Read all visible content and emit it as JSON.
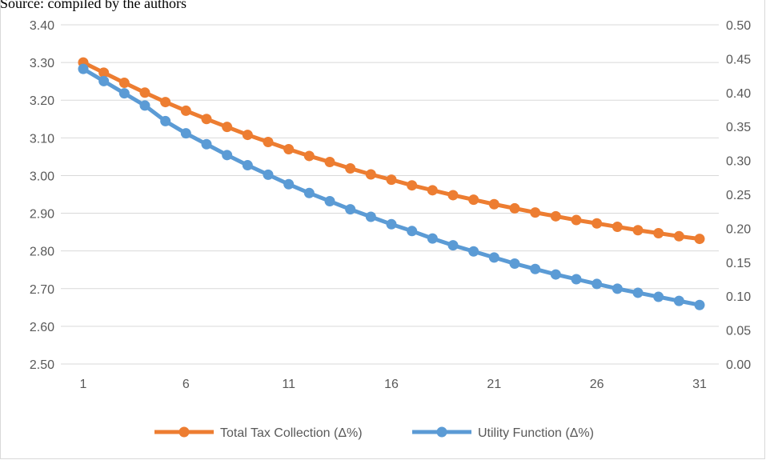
{
  "caption": "Source: compiled by the authors",
  "colors": {
    "tax": "#ED7D31",
    "utility": "#5B9BD5",
    "grid": "#d9d9d9",
    "text": "#595959"
  },
  "chart_data": {
    "type": "line",
    "x": [
      1,
      2,
      3,
      4,
      5,
      6,
      7,
      8,
      9,
      10,
      11,
      12,
      13,
      14,
      15,
      16,
      17,
      18,
      19,
      20,
      21,
      22,
      23,
      24,
      25,
      26,
      27,
      28,
      29,
      30,
      31
    ],
    "x_ticks": [
      "1",
      "6",
      "11",
      "16",
      "21",
      "26",
      "31"
    ],
    "y_left": {
      "ylim": [
        2.5,
        3.4
      ],
      "ticks": [
        "2.50",
        "2.60",
        "2.70",
        "2.80",
        "2.90",
        "3.00",
        "3.10",
        "3.20",
        "3.30",
        "3.40"
      ]
    },
    "y_right": {
      "ylim": [
        0,
        0.5
      ],
      "ticks": [
        "0.00",
        "0.05",
        "0.10",
        "0.15",
        "0.20",
        "0.25",
        "0.30",
        "0.35",
        "0.40",
        "0.45",
        "0.50"
      ]
    },
    "grid": true,
    "legend_position": "bottom",
    "series": [
      {
        "name": "Total Tax Collection (Δ%)",
        "axis": "left",
        "color": "#ED7D31",
        "values": [
          3.3,
          3.273,
          3.246,
          3.22,
          3.195,
          3.172,
          3.15,
          3.129,
          3.108,
          3.089,
          3.07,
          3.052,
          3.036,
          3.019,
          3.003,
          2.989,
          2.974,
          2.961,
          2.948,
          2.936,
          2.924,
          2.913,
          2.902,
          2.892,
          2.882,
          2.873,
          2.864,
          2.855,
          2.847,
          2.839,
          2.832
        ]
      },
      {
        "name": "Utility Function (Δ%)",
        "axis": "right",
        "color": "#5B9BD5",
        "values": [
          0.435,
          0.417,
          0.399,
          0.381,
          0.358,
          0.34,
          0.324,
          0.308,
          0.293,
          0.279,
          0.265,
          0.252,
          0.24,
          0.228,
          0.217,
          0.206,
          0.196,
          0.185,
          0.175,
          0.166,
          0.157,
          0.148,
          0.14,
          0.132,
          0.125,
          0.118,
          0.111,
          0.105,
          0.099,
          0.093,
          0.087
        ]
      }
    ]
  }
}
